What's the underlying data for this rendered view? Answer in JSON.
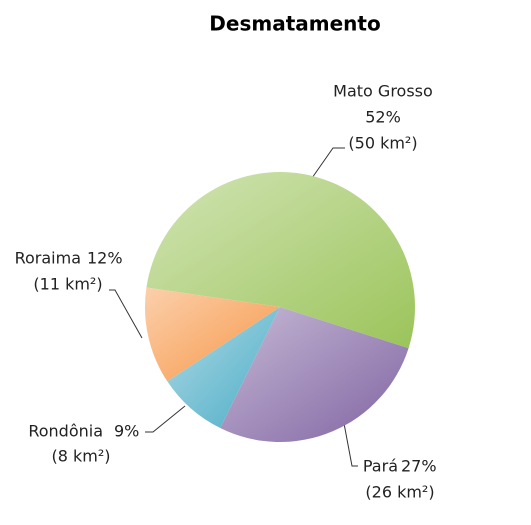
{
  "chart_data": {
    "type": "pie",
    "title": "Desmatamento",
    "categories": [
      "Mato Grosso",
      "Pará",
      "Rondônia",
      "Roraima"
    ],
    "values": [
      50,
      26,
      8,
      11
    ],
    "value_labels": [
      "(50 km²)",
      "(26 km²)",
      "(8 km²)",
      "(11 km²)"
    ],
    "percentages": [
      52,
      27,
      9,
      12
    ],
    "percentage_labels": [
      "52%",
      "27%",
      "9%",
      "12%"
    ],
    "colors": [
      "#9bc45a",
      "#8064a2",
      "#4bacc6",
      "#f79646"
    ]
  }
}
